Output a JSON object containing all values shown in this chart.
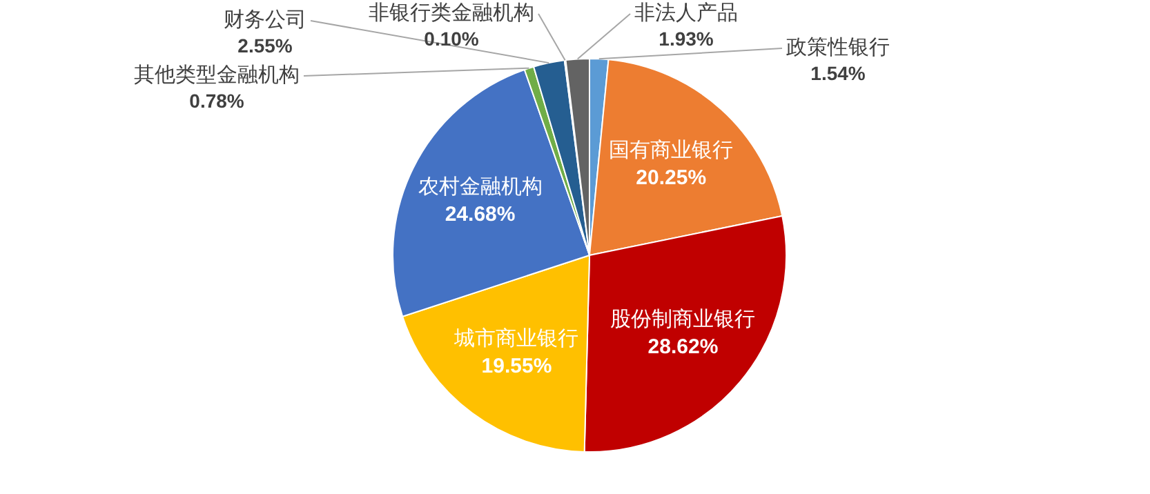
{
  "chart_data": {
    "type": "pie",
    "categories": [
      "政策性银行",
      "国有商业银行",
      "股份制商业银行",
      "城市商业银行",
      "农村金融机构",
      "其他类型金融机构",
      "财务公司",
      "非银行类金融机构",
      "非法人产品"
    ],
    "values": [
      1.54,
      20.25,
      28.62,
      19.55,
      24.68,
      0.78,
      2.55,
      0.1,
      1.93
    ],
    "value_labels": [
      "1.54%",
      "20.25%",
      "28.62%",
      "19.55%",
      "24.68%",
      "0.78%",
      "2.55%",
      "0.10%",
      "1.93%"
    ],
    "colors": [
      "#5b9bd5",
      "#ed7d31",
      "#c00000",
      "#ffc000",
      "#4472c4",
      "#70ad47",
      "#255e91",
      "#9e9e9e",
      "#636363"
    ],
    "legend": false
  }
}
